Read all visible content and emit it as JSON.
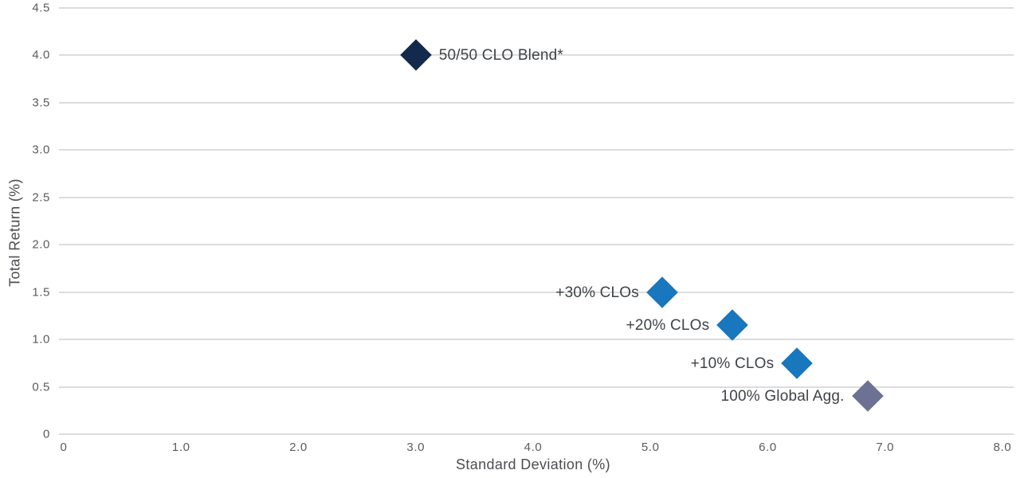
{
  "chart_data": {
    "type": "scatter",
    "title": "",
    "xlabel": "Standard Deviation (%)",
    "ylabel": "Total Return (%)",
    "xlim": [
      0,
      8
    ],
    "ylim": [
      0,
      4.5
    ],
    "grid": "horizontal",
    "legend": "none",
    "x_ticks": [
      {
        "v": 0,
        "t": "0"
      },
      {
        "v": 1,
        "t": "1.0"
      },
      {
        "v": 2,
        "t": "2.0"
      },
      {
        "v": 3,
        "t": "3.0"
      },
      {
        "v": 4,
        "t": "4.0"
      },
      {
        "v": 5,
        "t": "5.0"
      },
      {
        "v": 6,
        "t": "6.0"
      },
      {
        "v": 7,
        "t": "7.0"
      },
      {
        "v": 8,
        "t": "8.0"
      }
    ],
    "y_ticks": [
      {
        "v": 4.5,
        "t": "4.5"
      },
      {
        "v": 4.0,
        "t": "4.0"
      },
      {
        "v": 3.5,
        "t": "3.5"
      },
      {
        "v": 3.0,
        "t": "3.0"
      },
      {
        "v": 2.5,
        "t": "2.5"
      },
      {
        "v": 2.0,
        "t": "2.0"
      },
      {
        "v": 1.5,
        "t": "1.5"
      },
      {
        "v": 1.0,
        "t": "1.0"
      },
      {
        "v": 0.5,
        "t": "0.5"
      },
      {
        "v": 0,
        "t": "0"
      }
    ],
    "points": [
      {
        "label": "50/50 CLO Blend*",
        "x": 3.0,
        "y": 4.0,
        "color": "#132a4d",
        "label_side": "right",
        "marker": "diamond"
      },
      {
        "label": "+30% CLOs",
        "x": 5.1,
        "y": 1.5,
        "color": "#1877bd",
        "label_side": "left",
        "marker": "diamond"
      },
      {
        "label": "+20% CLOs",
        "x": 5.7,
        "y": 1.15,
        "color": "#1877bd",
        "label_side": "left",
        "marker": "diamond"
      },
      {
        "label": "+10% CLOs",
        "x": 6.25,
        "y": 0.75,
        "color": "#1877bd",
        "label_side": "left",
        "marker": "diamond"
      },
      {
        "label": "100% Global Agg.",
        "x": 6.85,
        "y": 0.4,
        "color": "#6d7294",
        "label_side": "left",
        "marker": "diamond"
      }
    ],
    "colors": {
      "background": "#ffffff",
      "gridline": "#dcdcdc",
      "tick_text": "#595c5f",
      "axis_title_text": "#4b4e52",
      "point_label_text": "#3f4347",
      "navy_marker": "#132a4d",
      "blue_marker": "#1877bd",
      "gray_marker": "#6d7294"
    }
  }
}
